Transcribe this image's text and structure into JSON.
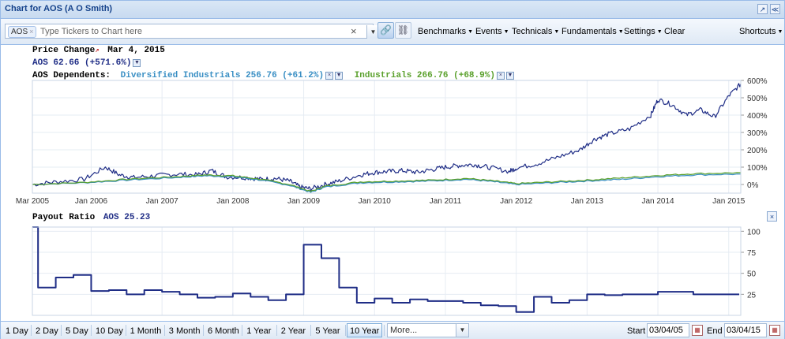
{
  "window": {
    "title": "Chart for AOS (A O Smith)"
  },
  "toolbar": {
    "ticker_chip": "AOS",
    "ticker_placeholder": "Type Tickers to Chart here",
    "menus": [
      "Benchmarks",
      "Events",
      "Technicals",
      "Fundamentals",
      "Settings"
    ],
    "clear": "Clear",
    "shortcuts": "Shortcuts"
  },
  "price_panel": {
    "heading": "Price Change",
    "date": "Mar 4, 2015",
    "main_series_label": "AOS 62.66 (+571.6%)",
    "dependents_label": "AOS Dependents:",
    "dep1_label": "Diversified Industrials 256.76 (+61.2%)",
    "dep2_label": "Industrials 266.76 (+68.9%)"
  },
  "payout_panel": {
    "heading": "Payout Ratio",
    "series_label": "AOS 25.23"
  },
  "ranges": {
    "buttons": [
      "1 Day",
      "2 Day",
      "5 Day",
      "10 Day",
      "1 Month",
      "3 Month",
      "6 Month",
      "1 Year",
      "2 Year",
      "5 Year",
      "10 Year"
    ],
    "active": "10 Year",
    "more": "More..."
  },
  "dates": {
    "start_label": "Start",
    "start": "03/04/05",
    "end_label": "End",
    "end": "03/04/15"
  },
  "colors": {
    "aos": "#1f2d86",
    "diversified": "#3a8fc4",
    "industrials": "#5aa02c",
    "accent": "#15428b"
  },
  "chart_data": [
    {
      "type": "line",
      "title": "Price Change",
      "x_ticks": [
        "Mar 2005",
        "Jan 2006",
        "Jan 2007",
        "Jan 2008",
        "Jan 2009",
        "Jan 2010",
        "Jan 2011",
        "Jan 2012",
        "Jan 2013",
        "Jan 2014",
        "Jan 2015"
      ],
      "y_ticks": [
        "0%",
        "100%",
        "200%",
        "300%",
        "400%",
        "500%",
        "600%"
      ],
      "ylim": [
        -50,
        600
      ],
      "xlim": [
        2005.17,
        2015.17
      ],
      "grid": true,
      "series": [
        {
          "name": "AOS",
          "x": [
            2005.17,
            2005.5,
            2005.9,
            2006.2,
            2006.4,
            2006.6,
            2006.9,
            2007.2,
            2007.5,
            2007.7,
            2007.9,
            2008.2,
            2008.4,
            2008.6,
            2008.8,
            2008.95,
            2009.1,
            2009.3,
            2009.5,
            2009.8,
            2010.0,
            2010.2,
            2010.4,
            2010.6,
            2010.8,
            2011.0,
            2011.2,
            2011.4,
            2011.6,
            2011.9,
            2012.0,
            2012.3,
            2012.6,
            2012.9,
            2013.1,
            2013.3,
            2013.6,
            2013.9,
            2014.0,
            2014.2,
            2014.4,
            2014.6,
            2014.8,
            2015.0,
            2015.17
          ],
          "y": [
            0,
            15,
            30,
            100,
            55,
            40,
            50,
            60,
            55,
            80,
            45,
            40,
            30,
            35,
            20,
            -15,
            -25,
            0,
            20,
            55,
            70,
            75,
            80,
            70,
            85,
            100,
            110,
            115,
            100,
            75,
            95,
            120,
            160,
            200,
            260,
            290,
            320,
            400,
            490,
            460,
            400,
            430,
            390,
            510,
            580
          ]
        },
        {
          "name": "Diversified Industrials",
          "x": [
            2005.17,
            2005.9,
            2006.5,
            2007.2,
            2007.6,
            2008.0,
            2008.4,
            2008.8,
            2009.1,
            2009.3,
            2009.8,
            2010.3,
            2010.8,
            2011.3,
            2011.7,
            2012.0,
            2012.5,
            2013.0,
            2013.5,
            2014.0,
            2014.5,
            2015.17
          ],
          "y": [
            0,
            10,
            25,
            40,
            50,
            45,
            25,
            -5,
            -45,
            -15,
            10,
            15,
            20,
            30,
            15,
            0,
            10,
            20,
            30,
            45,
            55,
            60
          ]
        },
        {
          "name": "Industrials",
          "x": [
            2005.17,
            2005.9,
            2006.5,
            2007.2,
            2007.6,
            2008.0,
            2008.4,
            2008.8,
            2009.1,
            2009.3,
            2009.8,
            2010.3,
            2010.8,
            2011.3,
            2011.7,
            2012.0,
            2012.5,
            2013.0,
            2013.5,
            2014.0,
            2014.5,
            2015.17
          ],
          "y": [
            0,
            12,
            30,
            45,
            55,
            50,
            30,
            0,
            -40,
            -10,
            15,
            20,
            25,
            35,
            20,
            5,
            15,
            25,
            38,
            52,
            62,
            68
          ]
        }
      ]
    },
    {
      "type": "line",
      "title": "Payout Ratio",
      "x_ticks": [
        "Mar 2005",
        "Jan 2006",
        "Jan 2007",
        "Jan 2008",
        "Jan 2009",
        "Jan 2010",
        "Jan 2011",
        "Jan 2012",
        "Jan 2013",
        "Jan 2014",
        "Jan 2015"
      ],
      "y_ticks": [
        "25",
        "50",
        "75",
        "100"
      ],
      "ylim": [
        0,
        105
      ],
      "xlim": [
        2005.17,
        2015.17
      ],
      "grid": true,
      "series": [
        {
          "name": "AOS",
          "step": true,
          "x": [
            2005.17,
            2005.25,
            2005.5,
            2005.75,
            2006.0,
            2006.25,
            2006.5,
            2006.75,
            2007.0,
            2007.25,
            2007.5,
            2007.75,
            2008.0,
            2008.25,
            2008.5,
            2008.75,
            2009.0,
            2009.25,
            2009.5,
            2009.75,
            2010.0,
            2010.25,
            2010.5,
            2010.75,
            2011.0,
            2011.25,
            2011.5,
            2011.75,
            2012.0,
            2012.25,
            2012.5,
            2012.75,
            2013.0,
            2013.25,
            2013.5,
            2013.75,
            2014.0,
            2014.25,
            2014.5,
            2014.75,
            2015.0
          ],
          "y": [
            105,
            33,
            45,
            48,
            29,
            30,
            25,
            30,
            28,
            25,
            21,
            22,
            26,
            22,
            18,
            25,
            84,
            68,
            33,
            15,
            20,
            15,
            19,
            17,
            17,
            15,
            12,
            11,
            4,
            22,
            15,
            18,
            25,
            24,
            25,
            25,
            28,
            28,
            25,
            25,
            25
          ]
        }
      ]
    }
  ]
}
